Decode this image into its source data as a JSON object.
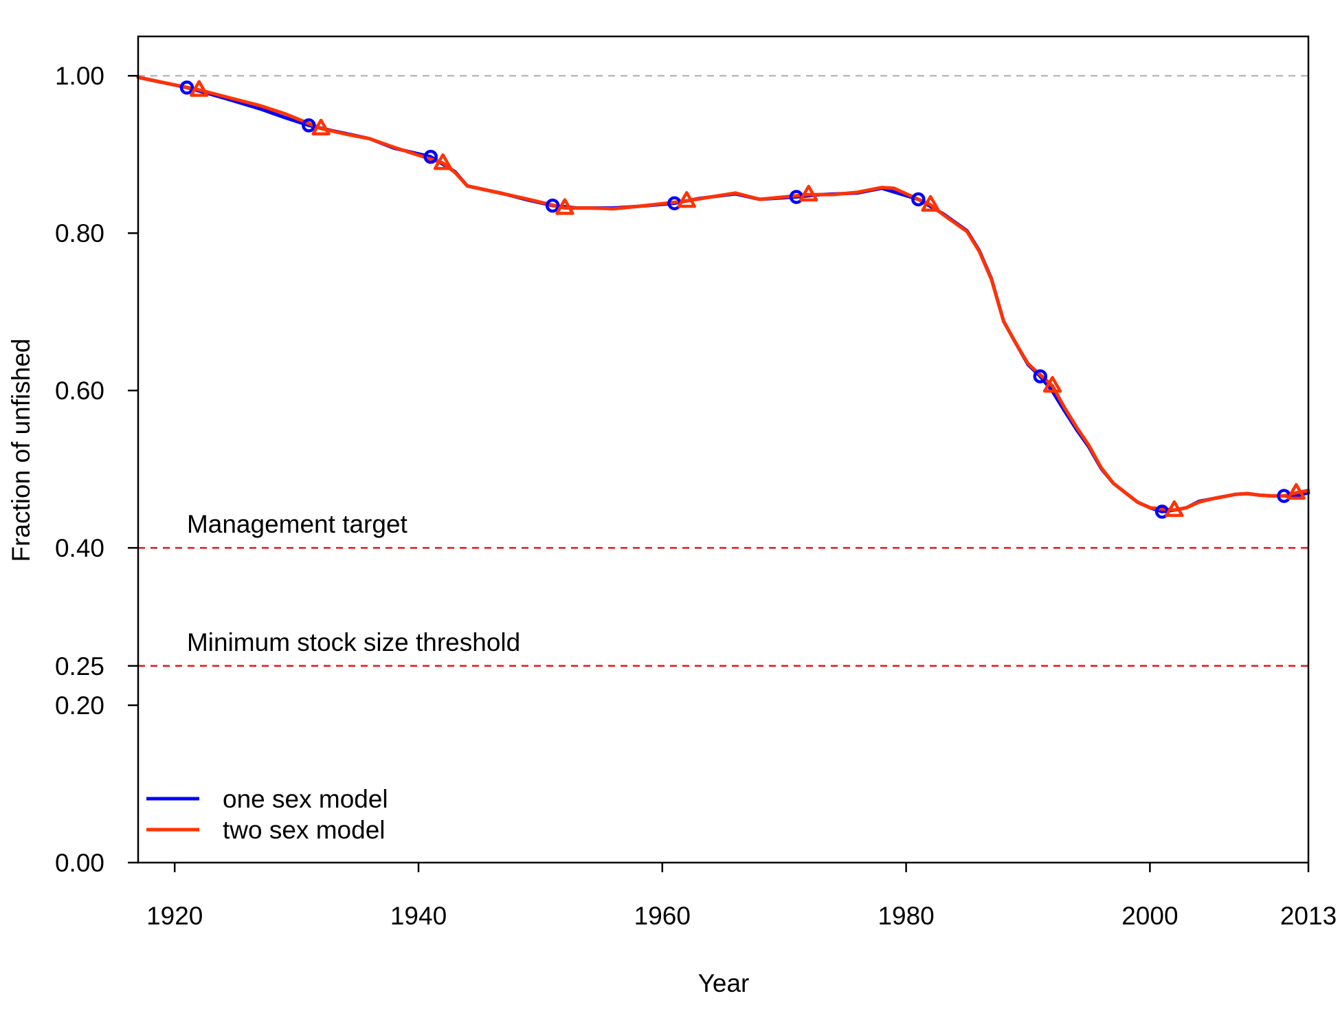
{
  "chart_data": {
    "type": "line",
    "xlabel": "Year",
    "ylabel": "Fraction of unfished",
    "xlim": [
      1917,
      2013
    ],
    "ylim": [
      0,
      1.05
    ],
    "x_ticks": [
      1920,
      1940,
      1960,
      1980,
      2000,
      2013
    ],
    "y_ticks": [
      0,
      0.2,
      0.25,
      0.4,
      0.6,
      0.8,
      1.0
    ],
    "x_tick_labels": [
      "1920",
      "1940",
      "1960",
      "1980",
      "2000",
      "2013"
    ],
    "y_tick_labels": [
      "0.00",
      "0.20",
      "0.25",
      "0.40",
      "0.60",
      "0.80",
      "1.00"
    ],
    "grid": false,
    "legend_position": "bottom-left",
    "reference_lines": [
      {
        "y": 1.0,
        "color": "#bbbbbb",
        "style": "dashed",
        "label": ""
      },
      {
        "y": 0.4,
        "color": "#ee1111",
        "style": "dashed",
        "label": "Management target"
      },
      {
        "y": 0.25,
        "color": "#ee1111",
        "style": "dashed",
        "label": "Minimum stock size threshold"
      }
    ],
    "series": [
      {
        "name": "one sex model",
        "color": "#0000ff",
        "marker": "circle",
        "x": [
          1917,
          1921,
          1924,
          1927,
          1929,
          1931,
          1933,
          1936,
          1938,
          1941,
          1943,
          1944,
          1947,
          1949,
          1951,
          1953,
          1956,
          1958,
          1961,
          1963,
          1966,
          1968,
          1971,
          1973,
          1976,
          1978,
          1981,
          1983,
          1985,
          1986,
          1987,
          1988,
          1989,
          1990,
          1991,
          1992,
          1993,
          1994,
          1995,
          1996,
          1997,
          1998,
          1999,
          2000,
          2001,
          2002,
          2003,
          2004,
          2005,
          2006,
          2007,
          2008,
          2009,
          2010,
          2011,
          2012,
          2013
        ],
        "y": [
          0.998,
          0.985,
          0.972,
          0.958,
          0.947,
          0.937,
          0.93,
          0.92,
          0.908,
          0.897,
          0.878,
          0.86,
          0.85,
          0.842,
          0.835,
          0.832,
          0.832,
          0.834,
          0.838,
          0.844,
          0.85,
          0.843,
          0.846,
          0.849,
          0.851,
          0.857,
          0.843,
          0.825,
          0.803,
          0.778,
          0.742,
          0.688,
          0.66,
          0.633,
          0.618,
          0.599,
          0.574,
          0.55,
          0.528,
          0.501,
          0.482,
          0.47,
          0.458,
          0.451,
          0.446,
          0.448,
          0.451,
          0.459,
          0.462,
          0.465,
          0.468,
          0.469,
          0.467,
          0.466,
          0.466,
          0.466,
          0.47
        ],
        "marker_x": [
          1921,
          1931,
          1941,
          1951,
          1961,
          1971,
          1981,
          1991,
          2001,
          2011
        ],
        "marker_y": [
          0.985,
          0.937,
          0.897,
          0.835,
          0.838,
          0.846,
          0.843,
          0.618,
          0.446,
          0.466
        ]
      },
      {
        "name": "two sex model",
        "color": "#ff3300",
        "marker": "triangle",
        "x": [
          1917,
          1922,
          1924,
          1927,
          1929,
          1932,
          1934,
          1936,
          1938,
          1942,
          1943,
          1944,
          1947,
          1949,
          1952,
          1954,
          1956,
          1958,
          1962,
          1964,
          1966,
          1968,
          1972,
          1974,
          1976,
          1978,
          1979,
          1982,
          1983,
          1985,
          1986,
          1987,
          1988,
          1989,
          1990,
          1992,
          1993,
          1994,
          1995,
          1996,
          1997,
          1998,
          1999,
          2000,
          2002,
          2003,
          2004,
          2005,
          2006,
          2007,
          2008,
          2009,
          2010,
          2011,
          2012,
          2013
        ],
        "y": [
          0.998,
          0.982,
          0.974,
          0.962,
          0.952,
          0.933,
          0.926,
          0.92,
          0.909,
          0.889,
          0.877,
          0.86,
          0.85,
          0.843,
          0.832,
          0.832,
          0.831,
          0.834,
          0.841,
          0.846,
          0.851,
          0.843,
          0.849,
          0.849,
          0.852,
          0.858,
          0.857,
          0.836,
          0.824,
          0.802,
          0.777,
          0.741,
          0.688,
          0.66,
          0.634,
          0.606,
          0.578,
          0.553,
          0.53,
          0.502,
          0.482,
          0.47,
          0.458,
          0.451,
          0.448,
          0.451,
          0.458,
          0.462,
          0.465,
          0.468,
          0.469,
          0.467,
          0.466,
          0.466,
          0.47,
          0.473
        ],
        "marker_x": [
          1922,
          1932,
          1942,
          1952,
          1962,
          1972,
          1982,
          1992,
          2002,
          2012
        ],
        "marker_y": [
          0.982,
          0.933,
          0.889,
          0.832,
          0.841,
          0.849,
          0.836,
          0.606,
          0.448,
          0.47
        ]
      }
    ]
  }
}
